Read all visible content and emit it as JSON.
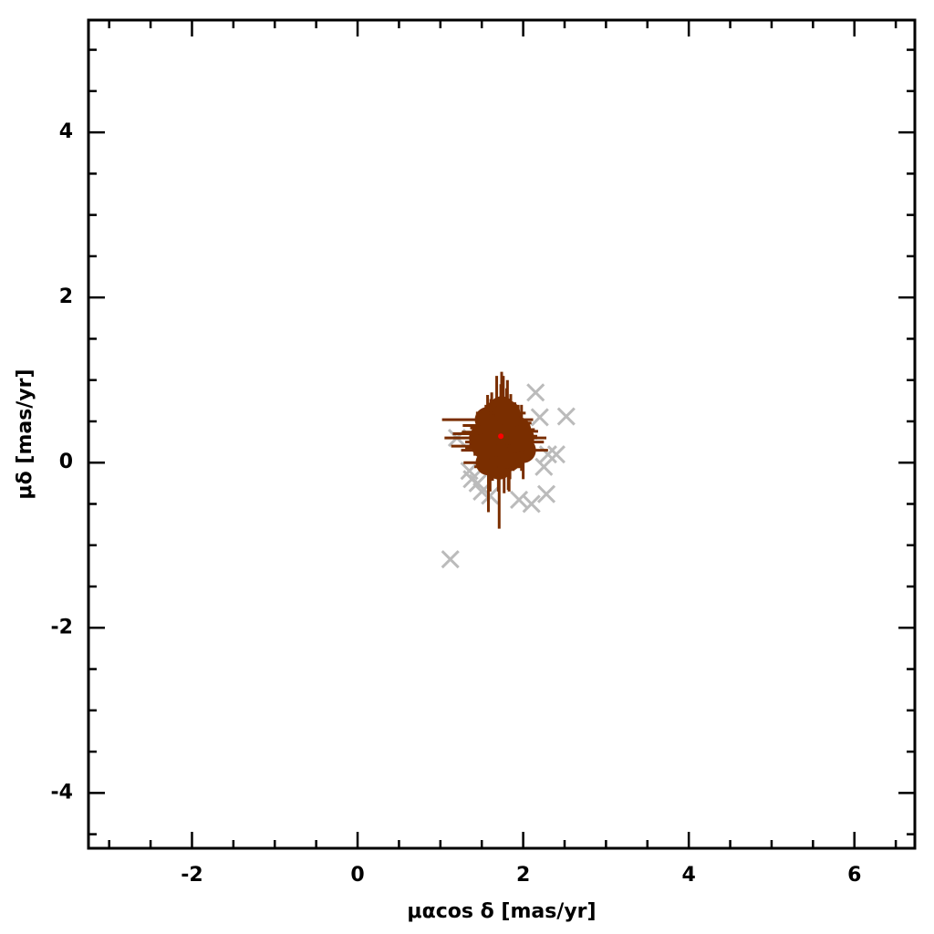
{
  "chart_data": {
    "type": "scatter",
    "xlabel": "μαcos δ [mas/yr]",
    "ylabel": "μδ [mas/yr]",
    "xlim": [
      -3.25,
      6.73
    ],
    "ylim": [
      -4.67,
      5.36
    ],
    "xticks": [
      -2,
      0,
      2,
      4,
      6
    ],
    "yticks": [
      -4,
      -2,
      0,
      2,
      4
    ],
    "xminorticks": [
      -3,
      -2.5,
      -1.5,
      -1,
      -0.5,
      0.5,
      1,
      1.5,
      2.5,
      3,
      3.5,
      4.5,
      5,
      5.5,
      6.5
    ],
    "yminorticks": [
      -4.5,
      -3.5,
      -3,
      -2.5,
      -1.5,
      -1,
      -0.5,
      0.5,
      1,
      1.5,
      2.5,
      3,
      3.5,
      4.5,
      5
    ],
    "members": {
      "color": "#7a2e00",
      "x": [
        1.75,
        1.62,
        1.88,
        1.7,
        1.8,
        1.55,
        1.95,
        1.68,
        1.83,
        1.72,
        1.6,
        1.9,
        1.78,
        1.65,
        1.85,
        1.5,
        2.0,
        1.74,
        1.58,
        1.92,
        1.7,
        1.82,
        1.66,
        1.76,
        1.87,
        1.63,
        1.79,
        1.71,
        1.94,
        1.57,
        1.84,
        1.69,
        1.77,
        1.61,
        1.89,
        1.73,
        1.67,
        1.81,
        1.53,
        1.98
      ],
      "y": [
        0.3,
        0.45,
        0.2,
        0.1,
        0.5,
        0.35,
        0.25,
        0.6,
        0.05,
        0.4,
        0.15,
        0.38,
        0.28,
        0.22,
        0.48,
        0.3,
        0.15,
        0.65,
        0.0,
        0.32,
        0.25,
        0.12,
        0.42,
        0.55,
        0.3,
        0.18,
        0.35,
        -0.05,
        0.4,
        0.52,
        0.2,
        0.33,
        0.08,
        0.37,
        0.27,
        0.45,
        0.23,
        0.6,
        0.2,
        0.3
      ],
      "xerr": [
        0.2,
        0.35,
        0.25,
        0.3,
        0.2,
        0.4,
        0.3,
        0.25,
        0.22,
        0.3,
        0.35,
        0.28,
        0.2,
        0.3,
        0.25,
        0.45,
        0.3,
        0.2,
        0.3,
        0.25,
        0.4,
        0.22,
        0.3,
        0.2,
        0.3,
        0.33,
        0.25,
        0.3,
        0.2,
        0.55,
        0.25,
        0.3,
        0.28,
        0.35,
        0.2,
        0.25,
        0.3,
        0.22,
        0.4,
        0.3
      ],
      "yerr": [
        0.35,
        0.4,
        0.3,
        0.45,
        0.4,
        0.35,
        0.3,
        0.45,
        0.4,
        0.3,
        0.5,
        0.35,
        0.3,
        0.4,
        0.35,
        0.3,
        0.35,
        0.45,
        0.6,
        0.3,
        0.4,
        0.45,
        0.35,
        0.5,
        0.3,
        0.4,
        0.35,
        0.75,
        0.3,
        0.3,
        0.4,
        0.35,
        0.45,
        0.4,
        0.3,
        0.5,
        0.35,
        0.4,
        0.3,
        0.4
      ]
    },
    "others": {
      "color": "#bbbbbb",
      "x": [
        2.15,
        2.52,
        2.2,
        1.12,
        2.28,
        1.38,
        1.5,
        1.95,
        2.3,
        2.25,
        1.2,
        2.4,
        1.45,
        1.6,
        2.1,
        1.35
      ],
      "y": [
        0.85,
        0.56,
        0.55,
        -1.17,
        -0.38,
        -0.2,
        -0.35,
        -0.45,
        0.1,
        -0.05,
        0.3,
        0.1,
        -0.25,
        -0.4,
        -0.5,
        -0.1
      ]
    },
    "center": {
      "x": 1.73,
      "y": 0.32,
      "color": "#ff0000"
    }
  }
}
